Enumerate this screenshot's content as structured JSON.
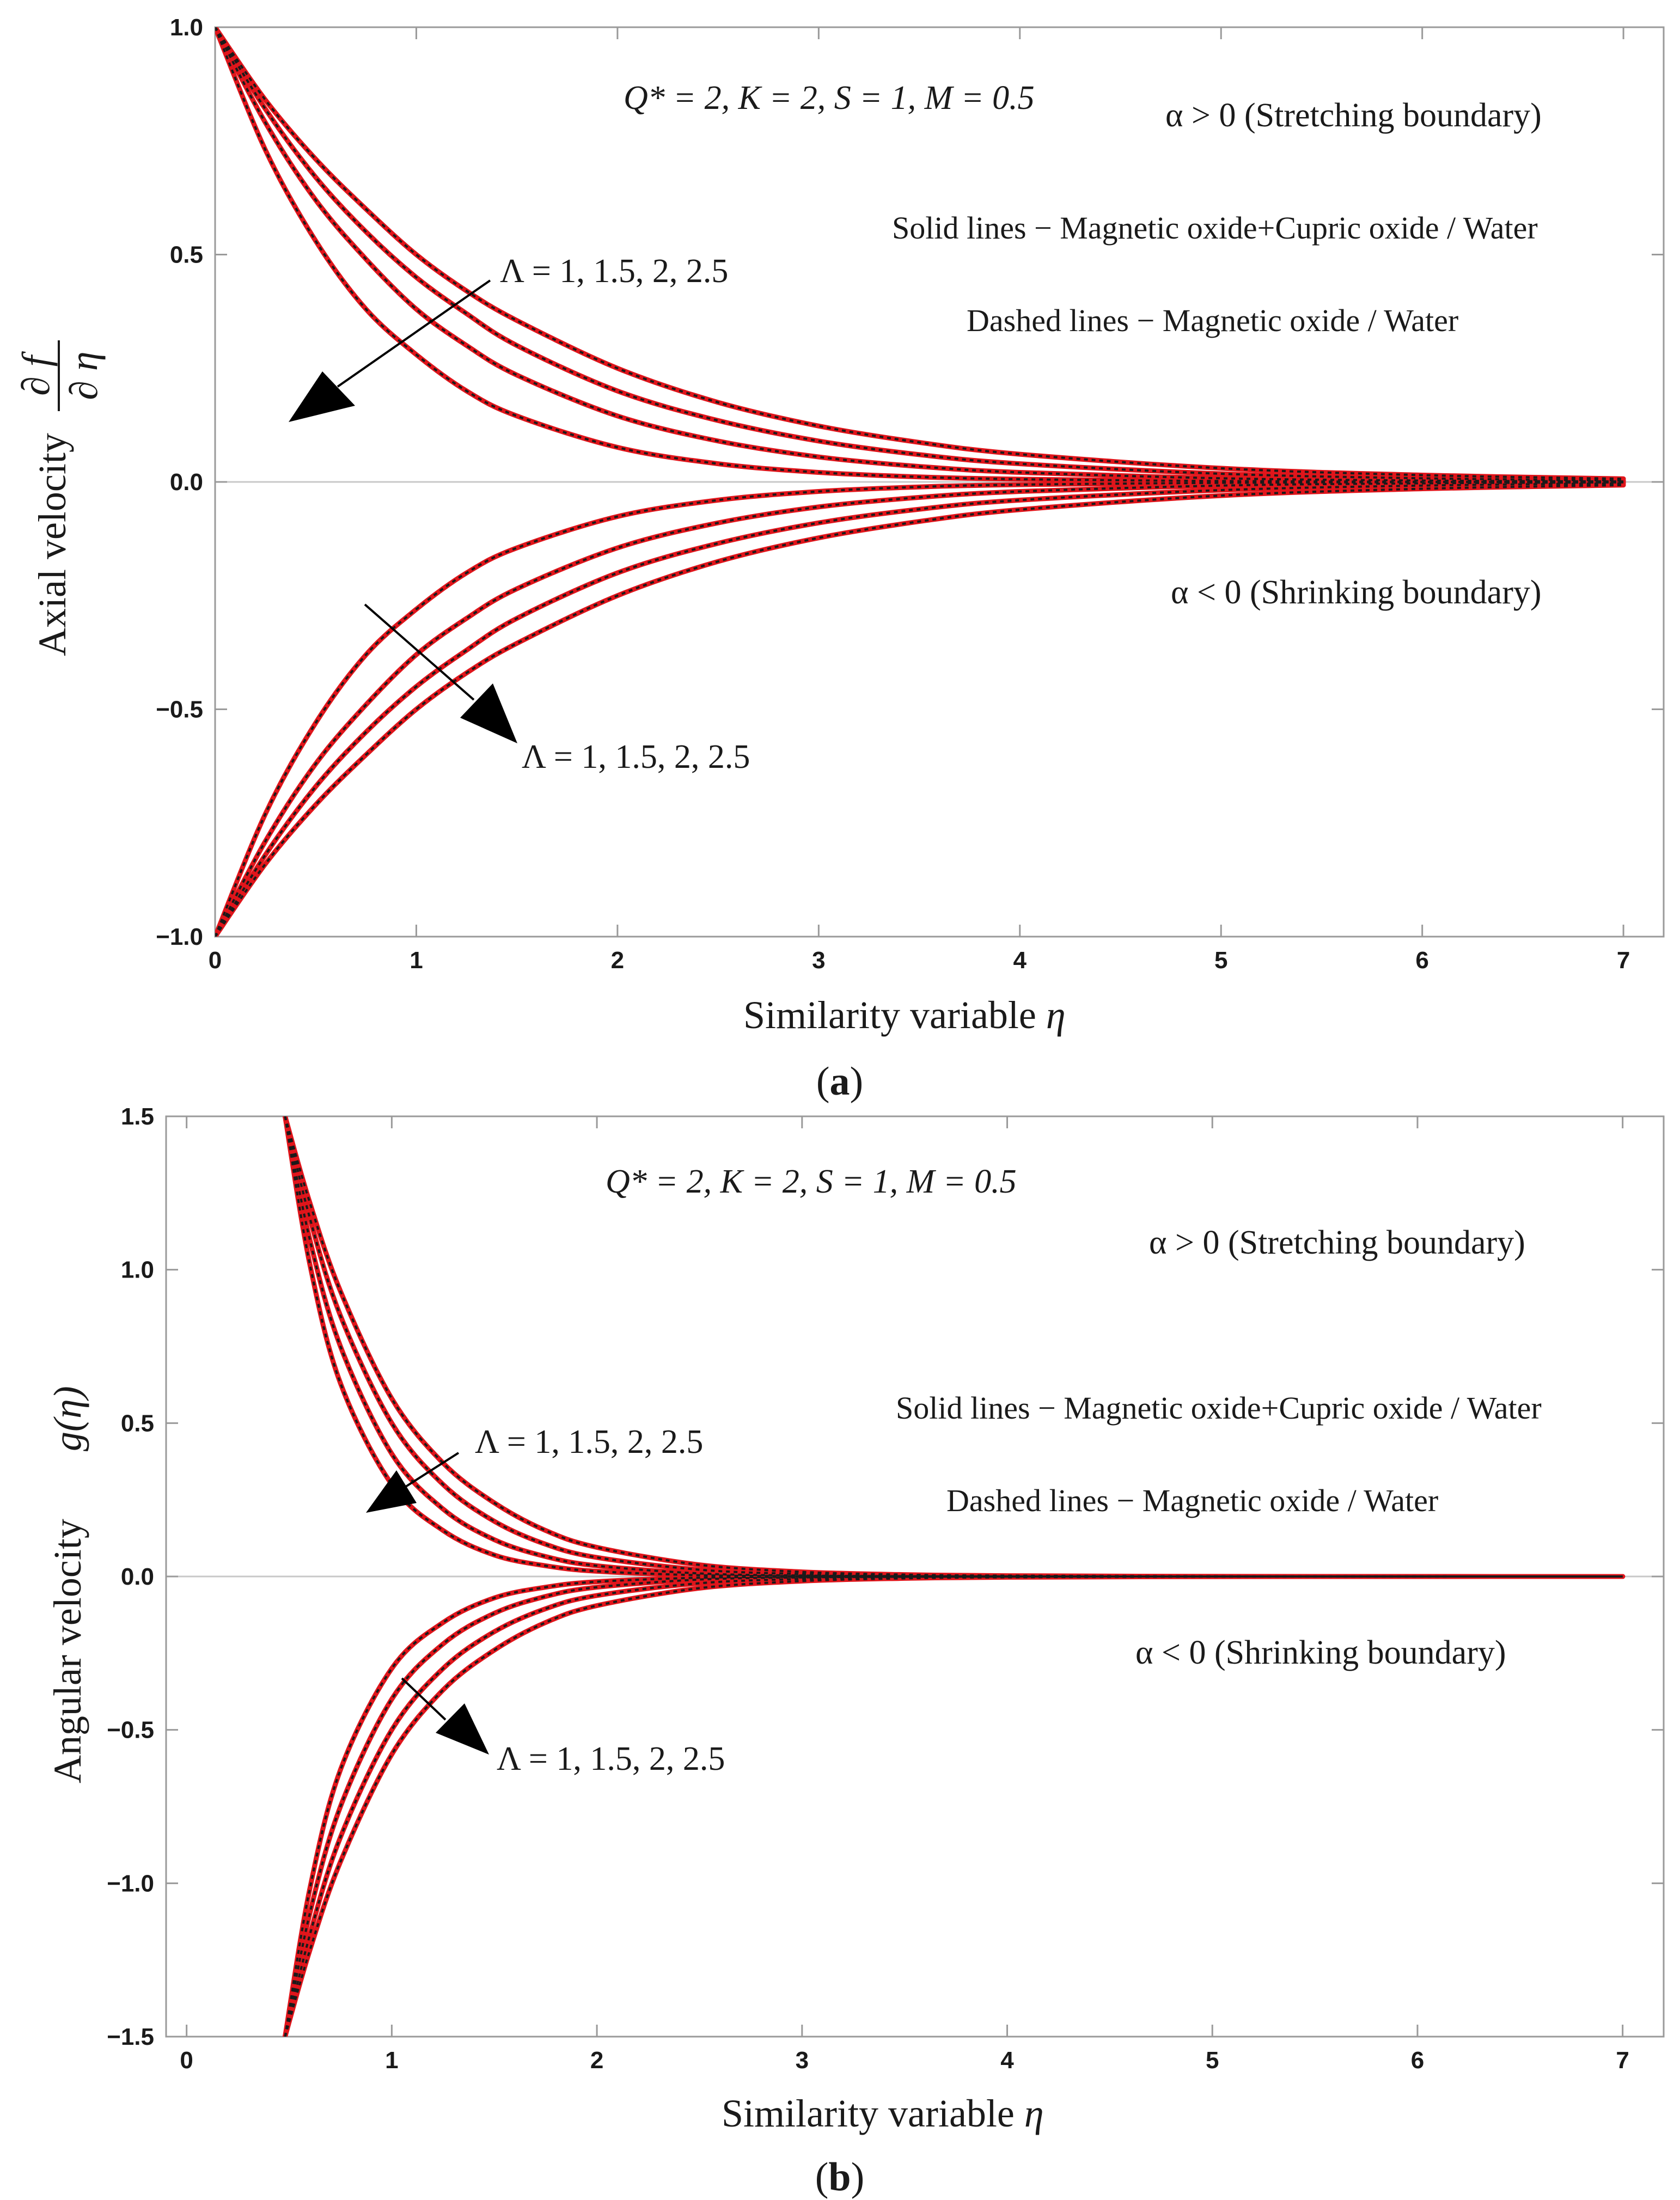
{
  "chart_data": [
    {
      "type": "line",
      "panel_label": "(a)",
      "panel_label_parts": [
        "(",
        "a",
        ")"
      ],
      "xlabel": "Similarity variable",
      "xlabel_symbol": "η",
      "ylabel": "Axial velocity",
      "ylabel_num": "∂ f",
      "ylabel_den": "∂ η",
      "xlim": [
        0,
        7.2
      ],
      "ylim": [
        -1.0,
        1.0
      ],
      "xticks": [
        0,
        1,
        2,
        3,
        4,
        5,
        6,
        7
      ],
      "xtick_labels": [
        "0",
        "1",
        "2",
        "3",
        "4",
        "5",
        "6",
        "7"
      ],
      "yticks": [
        -1.0,
        -0.5,
        0.0,
        0.5,
        1.0
      ],
      "ytick_labels": [
        "−1.0",
        "−0.5",
        "0.0",
        "0.5",
        "1.0"
      ],
      "params_label": "Q* = 2,  K = 2,  S = 1, M = 0.5",
      "stretching_label": "α > 0 (Stretching boundary)",
      "shrinking_label": "α < 0 (Shrinking boundary)",
      "solid_legend": "Solid lines − Magnetic oxide+Cupric oxide / Water",
      "dashed_legend": "Dashed lines − Magnetic oxide / Water",
      "lambda_label_upper": "Λ = 1, 1.5, 2, 2.5",
      "lambda_label_lower": "Λ = 1, 1.5, 2, 2.5",
      "lambda_values": [
        1,
        1.5,
        2,
        2.5
      ],
      "solid_color": "#e0151b",
      "dashed_color": "#1a1a1a",
      "curves": [
        {
          "branch": "stretching",
          "lambda": 1,
          "x": [
            0,
            0.25,
            0.5,
            0.75,
            1,
            1.25,
            1.5,
            2,
            2.5,
            3,
            3.5,
            4,
            5,
            6,
            7
          ],
          "y": [
            1,
            0.73,
            0.53,
            0.38,
            0.28,
            0.2,
            0.145,
            0.076,
            0.04,
            0.021,
            0.011,
            0.006,
            0.002,
            0.0005,
            0.0001
          ]
        },
        {
          "branch": "stretching",
          "lambda": 1.5,
          "x": [
            0,
            0.25,
            0.5,
            0.75,
            1,
            1.25,
            1.5,
            2,
            2.5,
            3,
            3.5,
            4,
            5,
            6,
            7
          ],
          "y": [
            1,
            0.79,
            0.62,
            0.49,
            0.38,
            0.3,
            0.235,
            0.145,
            0.09,
            0.055,
            0.034,
            0.021,
            0.008,
            0.003,
            0.001
          ]
        },
        {
          "branch": "stretching",
          "lambda": 2,
          "x": [
            0,
            0.25,
            0.5,
            0.75,
            1,
            1.25,
            1.5,
            2,
            2.5,
            3,
            3.5,
            4,
            5,
            6,
            7
          ],
          "y": [
            1,
            0.82,
            0.67,
            0.55,
            0.45,
            0.37,
            0.3,
            0.2,
            0.135,
            0.09,
            0.06,
            0.04,
            0.018,
            0.008,
            0.003
          ]
        },
        {
          "branch": "stretching",
          "lambda": 2.5,
          "x": [
            0,
            0.25,
            0.5,
            0.75,
            1,
            1.25,
            1.5,
            2,
            2.5,
            3,
            3.5,
            4,
            5,
            6,
            7
          ],
          "y": [
            1,
            0.84,
            0.71,
            0.6,
            0.5,
            0.42,
            0.355,
            0.25,
            0.175,
            0.123,
            0.087,
            0.061,
            0.03,
            0.015,
            0.007
          ]
        },
        {
          "branch": "shrinking",
          "lambda": 1,
          "x": [
            0,
            0.25,
            0.5,
            0.75,
            1,
            1.25,
            1.5,
            2,
            2.5,
            3,
            3.5,
            4,
            5,
            6,
            7
          ],
          "y": [
            -1,
            -0.73,
            -0.53,
            -0.38,
            -0.28,
            -0.2,
            -0.145,
            -0.076,
            -0.04,
            -0.021,
            -0.011,
            -0.006,
            -0.002,
            -0.0005,
            -0.0001
          ]
        },
        {
          "branch": "shrinking",
          "lambda": 1.5,
          "x": [
            0,
            0.25,
            0.5,
            0.75,
            1,
            1.25,
            1.5,
            2,
            2.5,
            3,
            3.5,
            4,
            5,
            6,
            7
          ],
          "y": [
            -1,
            -0.79,
            -0.62,
            -0.49,
            -0.38,
            -0.3,
            -0.235,
            -0.145,
            -0.09,
            -0.055,
            -0.034,
            -0.021,
            -0.008,
            -0.003,
            -0.001
          ]
        },
        {
          "branch": "shrinking",
          "lambda": 2,
          "x": [
            0,
            0.25,
            0.5,
            0.75,
            1,
            1.25,
            1.5,
            2,
            2.5,
            3,
            3.5,
            4,
            5,
            6,
            7
          ],
          "y": [
            -1,
            -0.82,
            -0.67,
            -0.55,
            -0.45,
            -0.37,
            -0.3,
            -0.2,
            -0.135,
            -0.09,
            -0.06,
            -0.04,
            -0.018,
            -0.008,
            -0.003
          ]
        },
        {
          "branch": "shrinking",
          "lambda": 2.5,
          "x": [
            0,
            0.25,
            0.5,
            0.75,
            1,
            1.25,
            1.5,
            2,
            2.5,
            3,
            3.5,
            4,
            5,
            6,
            7
          ],
          "y": [
            -1,
            -0.84,
            -0.71,
            -0.6,
            -0.5,
            -0.42,
            -0.355,
            -0.25,
            -0.175,
            -0.123,
            -0.087,
            -0.061,
            -0.03,
            -0.015,
            -0.007
          ]
        }
      ]
    },
    {
      "type": "line",
      "panel_label": "(b)",
      "panel_label_parts": [
        "(",
        "b",
        ")"
      ],
      "xlabel": "Similarity variable",
      "xlabel_symbol": "η",
      "ylabel": "Angular velocity",
      "ylabel_fn": "g(η)",
      "xlim": [
        -0.1,
        7.2
      ],
      "ylim": [
        -1.5,
        1.5
      ],
      "xticks": [
        0,
        1,
        2,
        3,
        4,
        5,
        6,
        7
      ],
      "xtick_labels": [
        "0",
        "1",
        "2",
        "3",
        "4",
        "5",
        "6",
        "7"
      ],
      "yticks": [
        -1.5,
        -1.0,
        -0.5,
        0.0,
        0.5,
        1.0,
        1.5
      ],
      "ytick_labels": [
        "−1.5",
        "−1.0",
        "−0.5",
        "0.0",
        "0.5",
        "1.0",
        "1.5"
      ],
      "params_label": "Q* = 2,  K = 2,  S = 1, M = 0.5",
      "stretching_label": "α > 0 (Stretching boundary)",
      "shrinking_label": "α < 0 (Shrinking boundary)",
      "solid_legend": "Solid lines − Magnetic oxide+Cupric oxide / Water",
      "dashed_legend": "Dashed lines − Magnetic oxide / Water",
      "lambda_label_upper": "Λ = 1, 1.5, 2, 2.5",
      "lambda_label_lower": "Λ = 1, 1.5, 2, 2.5",
      "lambda_values": [
        1,
        1.5,
        2,
        2.5
      ],
      "solid_color": "#e0151b",
      "dashed_color": "#1a1a1a",
      "curves": [
        {
          "branch": "stretching",
          "lambda": 1,
          "x": [
            0.48,
            0.6,
            0.75,
            1,
            1.25,
            1.5,
            1.75,
            2,
            2.5,
            3,
            3.5,
            4,
            5,
            6,
            7
          ],
          "y": [
            1.5,
            1.02,
            0.63,
            0.3,
            0.15,
            0.07,
            0.035,
            0.017,
            0.004,
            0.001,
            0.0003,
            0.0001,
            0,
            0,
            0
          ]
        },
        {
          "branch": "stretching",
          "lambda": 1.5,
          "x": [
            0.48,
            0.6,
            0.75,
            1,
            1.25,
            1.5,
            1.75,
            2,
            2.5,
            3,
            3.5,
            4,
            5,
            6,
            7
          ],
          "y": [
            1.5,
            1.1,
            0.75,
            0.4,
            0.22,
            0.12,
            0.065,
            0.035,
            0.01,
            0.003,
            0.001,
            0.0003,
            0,
            0,
            0
          ]
        },
        {
          "branch": "stretching",
          "lambda": 2,
          "x": [
            0.48,
            0.6,
            0.75,
            1,
            1.25,
            1.5,
            1.75,
            2,
            2.5,
            3,
            3.5,
            4,
            5,
            6,
            7
          ],
          "y": [
            1.5,
            1.17,
            0.85,
            0.5,
            0.3,
            0.18,
            0.105,
            0.062,
            0.022,
            0.008,
            0.003,
            0.001,
            0.0001,
            0,
            0
          ]
        },
        {
          "branch": "stretching",
          "lambda": 2.5,
          "x": [
            0.48,
            0.6,
            0.75,
            1,
            1.25,
            1.5,
            1.75,
            2,
            2.5,
            3,
            3.5,
            4,
            5,
            6,
            7
          ],
          "y": [
            1.5,
            1.22,
            0.93,
            0.58,
            0.37,
            0.24,
            0.15,
            0.095,
            0.038,
            0.015,
            0.006,
            0.0025,
            0.0004,
            0.0001,
            0
          ]
        },
        {
          "branch": "shrinking",
          "lambda": 1,
          "x": [
            0.48,
            0.6,
            0.75,
            1,
            1.25,
            1.5,
            1.75,
            2,
            2.5,
            3,
            3.5,
            4,
            5,
            6,
            7
          ],
          "y": [
            -1.5,
            -1.02,
            -0.63,
            -0.3,
            -0.15,
            -0.07,
            -0.035,
            -0.017,
            -0.004,
            -0.001,
            -0.0003,
            -0.0001,
            0,
            0,
            0
          ]
        },
        {
          "branch": "shrinking",
          "lambda": 1.5,
          "x": [
            0.48,
            0.6,
            0.75,
            1,
            1.25,
            1.5,
            1.75,
            2,
            2.5,
            3,
            3.5,
            4,
            5,
            6,
            7
          ],
          "y": [
            -1.5,
            -1.1,
            -0.75,
            -0.4,
            -0.22,
            -0.12,
            -0.065,
            -0.035,
            -0.01,
            -0.003,
            -0.001,
            -0.0003,
            0,
            0,
            0
          ]
        },
        {
          "branch": "shrinking",
          "lambda": 2,
          "x": [
            0.48,
            0.6,
            0.75,
            1,
            1.25,
            1.5,
            1.75,
            2,
            2.5,
            3,
            3.5,
            4,
            5,
            6,
            7
          ],
          "y": [
            -1.5,
            -1.17,
            -0.85,
            -0.5,
            -0.3,
            -0.18,
            -0.105,
            -0.062,
            -0.022,
            -0.008,
            -0.003,
            -0.001,
            -0.0001,
            0,
            0
          ]
        },
        {
          "branch": "shrinking",
          "lambda": 2.5,
          "x": [
            0.48,
            0.6,
            0.75,
            1,
            1.25,
            1.5,
            1.75,
            2,
            2.5,
            3,
            3.5,
            4,
            5,
            6,
            7
          ],
          "y": [
            -1.5,
            -1.22,
            -0.93,
            -0.58,
            -0.37,
            -0.24,
            -0.15,
            -0.095,
            -0.038,
            -0.015,
            -0.006,
            -0.0025,
            -0.0004,
            -0.0001,
            0
          ]
        }
      ]
    }
  ]
}
